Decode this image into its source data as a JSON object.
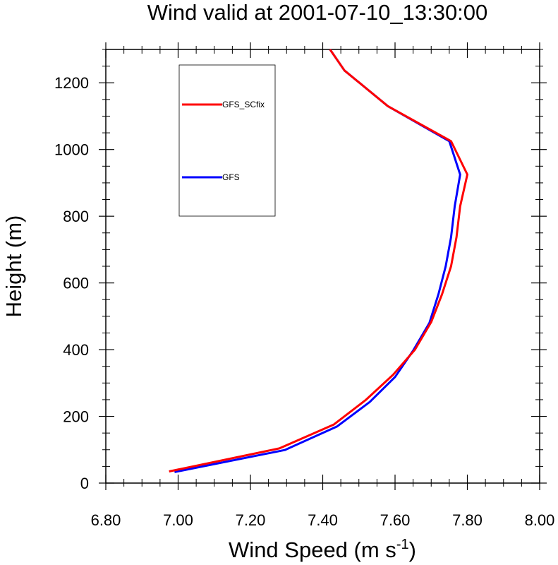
{
  "chart_data": {
    "type": "line",
    "title": "Wind valid at 2001-07-10_13:30:00",
    "xlabel": {
      "main": "Wind Speed (m s",
      "sup": "-1",
      "end": ")"
    },
    "ylabel": "Height (m)",
    "xlim": [
      6.8,
      8.0
    ],
    "ylim": [
      0,
      1300
    ],
    "x_ticks": [
      6.8,
      7.0,
      7.2,
      7.4,
      7.6,
      7.8,
      8.0
    ],
    "x_tick_labels": [
      "6.80",
      "7.00",
      "7.20",
      "7.40",
      "7.60",
      "7.80",
      "8.00"
    ],
    "y_ticks": [
      0,
      200,
      400,
      600,
      800,
      1000,
      1200
    ],
    "y_tick_labels": [
      "0",
      "200",
      "400",
      "600",
      "800",
      "1000",
      "1200"
    ],
    "grid": false,
    "legend_position": "top-left",
    "series": [
      {
        "name": "GFS_SCfix",
        "color": "#ff0000",
        "points": [
          [
            6.975,
            35
          ],
          [
            7.28,
            104
          ],
          [
            7.43,
            175
          ],
          [
            7.52,
            250
          ],
          [
            7.595,
            325
          ],
          [
            7.655,
            400
          ],
          [
            7.7,
            483
          ],
          [
            7.73,
            566
          ],
          [
            7.755,
            650
          ],
          [
            7.77,
            737
          ],
          [
            7.78,
            830
          ],
          [
            7.8,
            925
          ],
          [
            7.755,
            1025
          ],
          [
            7.58,
            1130
          ],
          [
            7.46,
            1237
          ],
          [
            7.42,
            1300
          ]
        ]
      },
      {
        "name": "GFS",
        "color": "#0000ff",
        "points": [
          [
            6.99,
            33
          ],
          [
            7.295,
            99
          ],
          [
            7.44,
            170
          ],
          [
            7.53,
            243
          ],
          [
            7.6,
            318
          ],
          [
            7.65,
            397
          ],
          [
            7.695,
            480
          ],
          [
            7.72,
            566
          ],
          [
            7.74,
            650
          ],
          [
            7.755,
            737
          ],
          [
            7.765,
            830
          ],
          [
            7.78,
            925
          ],
          [
            7.75,
            1025
          ],
          [
            7.58,
            1130
          ],
          [
            7.46,
            1237
          ],
          [
            7.42,
            1300
          ]
        ]
      }
    ]
  }
}
